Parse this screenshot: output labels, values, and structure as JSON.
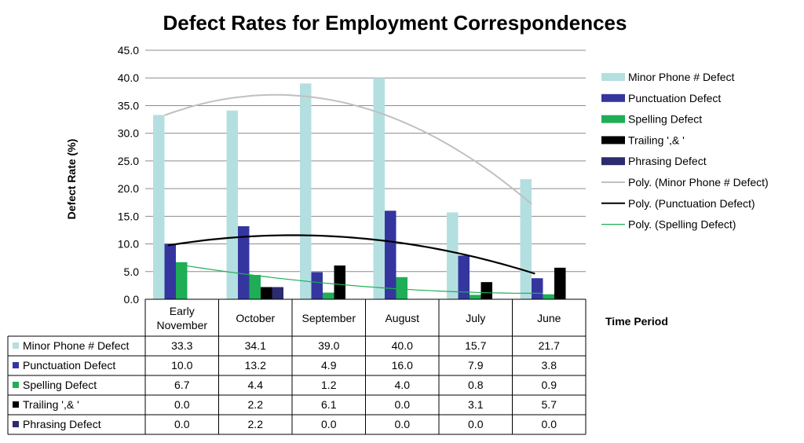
{
  "chart_data": {
    "type": "bar",
    "title": "Defect Rates for Employment  Correspondences",
    "ylabel": "Defect Rate (%)",
    "xlabel": "Time Period",
    "ylim": [
      0,
      45
    ],
    "yticks": [
      "0.0",
      "5.0",
      "10.0",
      "15.0",
      "20.0",
      "25.0",
      "30.0",
      "35.0",
      "40.0",
      "45.0"
    ],
    "grid": true,
    "legend_position": "right",
    "categories": [
      "Early November",
      "October",
      "September",
      "August",
      "July",
      "June"
    ],
    "series": [
      {
        "name": "Minor Phone # Defect",
        "color": "#b4dfe0",
        "values": [
          33.3,
          34.1,
          39.0,
          40.0,
          15.7,
          21.7
        ],
        "display": [
          "33.3",
          "34.1",
          "39.0",
          "40.0",
          "15.7",
          "21.7"
        ]
      },
      {
        "name": "Punctuation Defect",
        "color": "#3535a0",
        "values": [
          10.0,
          13.2,
          4.9,
          16.0,
          7.9,
          3.8
        ],
        "display": [
          "10.0",
          "13.2",
          "4.9",
          "16.0",
          "7.9",
          "3.8"
        ]
      },
      {
        "name": "Spelling Defect",
        "color": "#1fae56",
        "values": [
          6.7,
          4.4,
          1.2,
          4.0,
          0.8,
          0.9
        ],
        "display": [
          "6.7",
          "4.4",
          "1.2",
          "4.0",
          "0.8",
          "0.9"
        ]
      },
      {
        "name": "Trailing ',& '",
        "color": "#000000",
        "values": [
          0.0,
          2.2,
          6.1,
          0.0,
          3.1,
          5.7
        ],
        "display": [
          "0.0",
          "2.2",
          "6.1",
          "0.0",
          "3.1",
          "5.7"
        ]
      },
      {
        "name": "Phrasing Defect",
        "color": "#2b2b6e",
        "values": [
          0.0,
          2.2,
          0.0,
          0.0,
          0.0,
          0.0
        ],
        "display": [
          "0.0",
          "2.2",
          "0.0",
          "0.0",
          "0.0",
          "0.0"
        ]
      }
    ],
    "trendlines": [
      {
        "name": "Poly. (Minor Phone # Defect)",
        "color": "#c0c0c0",
        "order": 2,
        "series": "Minor Phone # Defect"
      },
      {
        "name": "Poly. (Punctuation Defect)",
        "color": "#000000",
        "order": 2,
        "series": "Punctuation Defect"
      },
      {
        "name": "Poly. (Spelling Defect)",
        "color": "#1fae56",
        "order": 2,
        "series": "Spelling Defect"
      }
    ]
  }
}
